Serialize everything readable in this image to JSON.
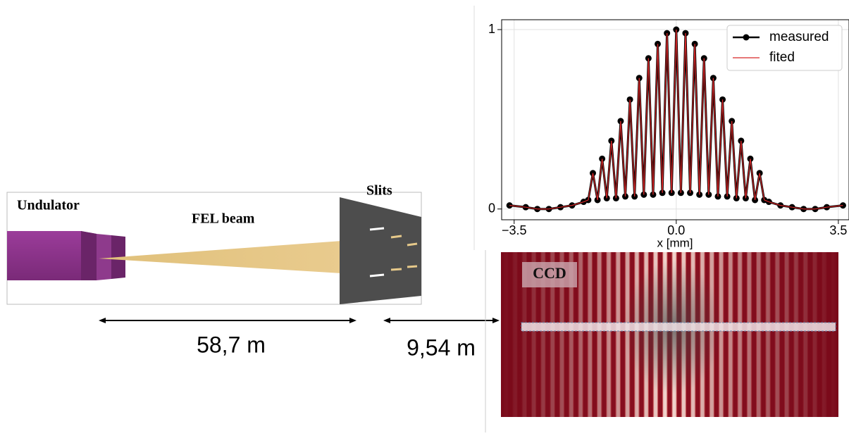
{
  "labels": {
    "undulator": "Undulator",
    "beam": "FEL beam",
    "slits": "Slits",
    "ccd": "CCD",
    "distance_1": "58,7 m",
    "distance_2": "9,54 m"
  },
  "plot": {
    "type": "line",
    "xlabel": "x [mm]",
    "x": [
      -3.6,
      -3.25,
      -3.0,
      -2.75,
      -2.5,
      -2.25,
      -2.0,
      -1.9,
      -1.8,
      -1.7,
      -1.6,
      -1.5,
      -1.4,
      -1.3,
      -1.2,
      -1.1,
      -1.0,
      -0.9,
      -0.8,
      -0.7,
      -0.6,
      -0.5,
      -0.4,
      -0.3,
      -0.2,
      -0.1,
      0.0,
      0.1,
      0.2,
      0.3,
      0.4,
      0.5,
      0.6,
      0.7,
      0.8,
      0.9,
      1.0,
      1.1,
      1.2,
      1.3,
      1.4,
      1.5,
      1.6,
      1.7,
      1.8,
      1.9,
      2.0,
      2.25,
      2.5,
      2.75,
      3.0,
      3.25,
      3.6
    ],
    "series": [
      {
        "name": "measured",
        "color": "#000000",
        "values": [
          0.02,
          0.01,
          0.0,
          0.0,
          0.01,
          0.02,
          0.04,
          0.05,
          0.2,
          0.05,
          0.28,
          0.06,
          0.38,
          0.06,
          0.49,
          0.07,
          0.61,
          0.07,
          0.73,
          0.08,
          0.84,
          0.08,
          0.92,
          0.09,
          0.98,
          0.09,
          1.0,
          0.09,
          0.98,
          0.09,
          0.92,
          0.08,
          0.84,
          0.08,
          0.73,
          0.07,
          0.61,
          0.07,
          0.49,
          0.06,
          0.38,
          0.06,
          0.28,
          0.05,
          0.2,
          0.05,
          0.04,
          0.02,
          0.01,
          0.0,
          0.0,
          0.01,
          0.02
        ]
      },
      {
        "name": "fited",
        "color": "#d62728",
        "values": [
          0.02,
          0.01,
          0.0,
          0.0,
          0.01,
          0.02,
          0.04,
          0.05,
          0.2,
          0.05,
          0.28,
          0.06,
          0.38,
          0.06,
          0.49,
          0.07,
          0.61,
          0.07,
          0.73,
          0.08,
          0.84,
          0.08,
          0.92,
          0.09,
          0.98,
          0.09,
          1.0,
          0.09,
          0.98,
          0.09,
          0.92,
          0.08,
          0.84,
          0.08,
          0.73,
          0.07,
          0.61,
          0.07,
          0.49,
          0.06,
          0.38,
          0.06,
          0.28,
          0.05,
          0.2,
          0.05,
          0.04,
          0.02,
          0.01,
          0.0,
          0.0,
          0.01,
          0.02
        ]
      }
    ],
    "xlim": [
      -3.77,
      3.73
    ],
    "ylim": [
      -0.06,
      1.055
    ],
    "xticks": [
      {
        "value": -3.5,
        "label": "−3.5"
      },
      {
        "value": 0,
        "label": "0.0"
      },
      {
        "value": 3.5,
        "label": "3.5"
      }
    ],
    "yticks": [
      0,
      1
    ],
    "grid": true
  }
}
